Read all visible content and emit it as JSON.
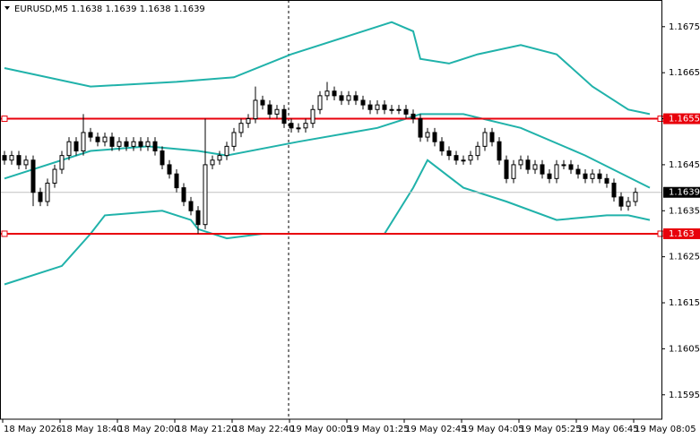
{
  "chart_data": {
    "type": "candlestick",
    "title": "EURUSD,M5  1.1638 1.1639 1.1638 1.1639",
    "categories": [
      "18 May 2026",
      null,
      null,
      null,
      null,
      null,
      null,
      null,
      "18 May 18:40",
      null,
      null,
      null,
      null,
      null,
      null,
      null,
      "18 May 20:00",
      null,
      null,
      null,
      null,
      null,
      null,
      null,
      "18 May 21:20",
      null,
      null,
      null,
      null,
      null,
      null,
      null,
      "18 May 22:40",
      null,
      null,
      null,
      null,
      null,
      null,
      null,
      "19 May 00:05",
      null,
      null,
      null,
      null,
      null,
      null,
      null,
      "19 May 01:25",
      null,
      null,
      null,
      null,
      null,
      null,
      null,
      "19 May 02:45",
      null,
      null,
      null,
      null,
      null,
      null,
      null,
      "19 May 04:05",
      null,
      null,
      null,
      null,
      null,
      null,
      null,
      "19 May 05:25",
      null,
      null,
      null,
      null,
      null,
      null,
      null,
      "19 May 06:45",
      null,
      null,
      null,
      null,
      null,
      null,
      null,
      "19 May 08:05"
    ],
    "open": [
      1.1647,
      1.1646,
      1.1647,
      1.1645,
      1.1646,
      1.1639,
      1.1637,
      1.1641,
      1.1644,
      1.1647,
      1.165,
      1.1648,
      1.1652,
      1.1651,
      1.165,
      1.1651,
      1.1649,
      1.165,
      1.1649,
      1.165,
      1.1649,
      1.165,
      1.1648,
      1.1645,
      1.1643,
      1.164,
      1.1637,
      1.1635,
      1.1632,
      1.1645,
      1.1646,
      1.1647,
      1.1649,
      1.1652,
      1.1654,
      1.1655,
      1.1659,
      1.1658,
      1.1656,
      1.1657,
      1.1654,
      1.1653,
      1.1653,
      1.1654,
      1.1657,
      1.166,
      1.1661,
      1.166,
      1.1659,
      1.166,
      1.1659,
      1.1658,
      1.1657,
      1.1658,
      1.1657,
      1.1657,
      1.1657,
      1.1656,
      1.1655,
      1.1651,
      1.1652,
      1.165,
      1.1648,
      1.1647,
      1.1646,
      1.1646,
      1.1647,
      1.1649,
      1.1652,
      1.165,
      1.1646,
      1.1642,
      1.1645,
      1.1646,
      1.1644,
      1.1645,
      1.1643,
      1.1642,
      1.1645,
      1.1645,
      1.1644,
      1.1643,
      1.1642,
      1.1643,
      1.1642,
      1.1641,
      1.1638,
      1.1636,
      1.1637
    ],
    "high": [
      1.1648,
      1.1648,
      1.1648,
      1.1647,
      1.1647,
      1.164,
      1.1642,
      1.1645,
      1.1648,
      1.1651,
      1.1651,
      1.1656,
      1.1653,
      1.1652,
      1.1652,
      1.1652,
      1.1651,
      1.1651,
      1.1651,
      1.1651,
      1.1651,
      1.1651,
      1.1649,
      1.1646,
      1.1644,
      1.1641,
      1.1638,
      1.1636,
      1.1655,
      1.1647,
      1.1648,
      1.165,
      1.1653,
      1.1655,
      1.1656,
      1.1662,
      1.166,
      1.1659,
      1.1658,
      1.1658,
      1.1655,
      1.1654,
      1.1655,
      1.1658,
      1.1661,
      1.1663,
      1.1662,
      1.1661,
      1.1661,
      1.1661,
      1.166,
      1.1659,
      1.1659,
      1.1659,
      1.1658,
      1.1658,
      1.1658,
      1.1657,
      1.1656,
      1.1653,
      1.1653,
      1.1651,
      1.1649,
      1.1648,
      1.1647,
      1.1648,
      1.165,
      1.1653,
      1.1653,
      1.1651,
      1.1647,
      1.1646,
      1.1647,
      1.1647,
      1.1646,
      1.1646,
      1.1644,
      1.1646,
      1.1646,
      1.1646,
      1.1645,
      1.1644,
      1.1644,
      1.1644,
      1.1643,
      1.1642,
      1.1639,
      1.1638,
      1.164
    ],
    "low": [
      1.1645,
      1.1645,
      1.1644,
      1.1644,
      1.1636,
      1.1636,
      1.1636,
      1.164,
      1.1643,
      1.1646,
      1.1647,
      1.1647,
      1.165,
      1.1649,
      1.1649,
      1.1648,
      1.1648,
      1.1648,
      1.1648,
      1.1648,
      1.1648,
      1.1647,
      1.1644,
      1.1642,
      1.1639,
      1.1636,
      1.1634,
      1.163,
      1.1631,
      1.1644,
      1.1645,
      1.1646,
      1.1648,
      1.1651,
      1.1653,
      1.1654,
      1.1657,
      1.1655,
      1.1655,
      1.1653,
      1.1652,
      1.1652,
      1.1652,
      1.1653,
      1.1656,
      1.1659,
      1.1659,
      1.1658,
      1.1658,
      1.1658,
      1.1657,
      1.1656,
      1.1656,
      1.1656,
      1.1656,
      1.1656,
      1.1655,
      1.1654,
      1.165,
      1.165,
      1.1649,
      1.1647,
      1.1646,
      1.1645,
      1.1645,
      1.1645,
      1.1646,
      1.1648,
      1.1649,
      1.1645,
      1.1641,
      1.1641,
      1.1644,
      1.1643,
      1.1643,
      1.1642,
      1.1641,
      1.1641,
      1.1644,
      1.1643,
      1.1642,
      1.1641,
      1.1641,
      1.1641,
      1.164,
      1.1637,
      1.1635,
      1.1635,
      1.1636
    ],
    "close": [
      1.1646,
      1.1647,
      1.1645,
      1.1646,
      1.1639,
      1.1637,
      1.1641,
      1.1644,
      1.1647,
      1.165,
      1.1648,
      1.1652,
      1.1651,
      1.165,
      1.1651,
      1.1649,
      1.165,
      1.1649,
      1.165,
      1.1649,
      1.165,
      1.1648,
      1.1645,
      1.1643,
      1.164,
      1.1637,
      1.1635,
      1.1632,
      1.1645,
      1.1646,
      1.1647,
      1.1649,
      1.1652,
      1.1654,
      1.1655,
      1.1659,
      1.1658,
      1.1656,
      1.1657,
      1.1654,
      1.1653,
      1.1653,
      1.1654,
      1.1657,
      1.166,
      1.1661,
      1.166,
      1.1659,
      1.166,
      1.1659,
      1.1658,
      1.1657,
      1.1658,
      1.1657,
      1.1657,
      1.1657,
      1.1656,
      1.1655,
      1.1651,
      1.1652,
      1.165,
      1.1648,
      1.1647,
      1.1646,
      1.1646,
      1.1647,
      1.1649,
      1.1652,
      1.165,
      1.1646,
      1.1642,
      1.1645,
      1.1646,
      1.1644,
      1.1645,
      1.1643,
      1.1642,
      1.1645,
      1.1645,
      1.1644,
      1.1643,
      1.1642,
      1.1643,
      1.1642,
      1.1641,
      1.1638,
      1.1636,
      1.1637,
      1.1639
    ],
    "bands": [
      {
        "color": "#20b2aa",
        "x": [
          0,
          12,
          24,
          32,
          40,
          48,
          54,
          57,
          58,
          62,
          66,
          72,
          77,
          82,
          87,
          90
        ],
        "values": [
          1.1666,
          1.1662,
          1.1663,
          1.1664,
          1.1669,
          1.1673,
          1.1676,
          1.1674,
          1.1668,
          1.1667,
          1.1669,
          1.1671,
          1.1669,
          1.1662,
          1.1657,
          1.1656
        ]
      },
      {
        "color": "#20b2aa",
        "x": [
          0,
          12,
          20,
          27,
          31,
          41,
          52,
          58,
          64,
          72,
          81,
          90
        ],
        "values": [
          1.1642,
          1.1648,
          1.1649,
          1.1648,
          1.1647,
          1.165,
          1.1653,
          1.1656,
          1.1656,
          1.1653,
          1.1647,
          1.164
        ]
      },
      {
        "color": "#20b2aa",
        "x": [
          0,
          8,
          12,
          14,
          22,
          26,
          27,
          31,
          36,
          49,
          53,
          57,
          59,
          64,
          70,
          77,
          84,
          87,
          90
        ],
        "values": [
          1.1619,
          1.1623,
          1.163,
          1.1634,
          1.1635,
          1.1633,
          1.1631,
          1.1629,
          1.163,
          1.163,
          1.163,
          1.164,
          1.1646,
          1.164,
          1.1637,
          1.1633,
          1.1634,
          1.1634,
          1.1633
        ]
      }
    ],
    "levels": [
      1.1655,
      1.163
    ],
    "level_color": "#e8000b",
    "current_price": 1.1639,
    "ylim": [
      1.15897,
      1.16808
    ],
    "yticks": [
      1.1595,
      1.1605,
      1.1615,
      1.1625,
      1.1635,
      1.1645,
      1.1655,
      1.1665,
      1.1675
    ]
  }
}
